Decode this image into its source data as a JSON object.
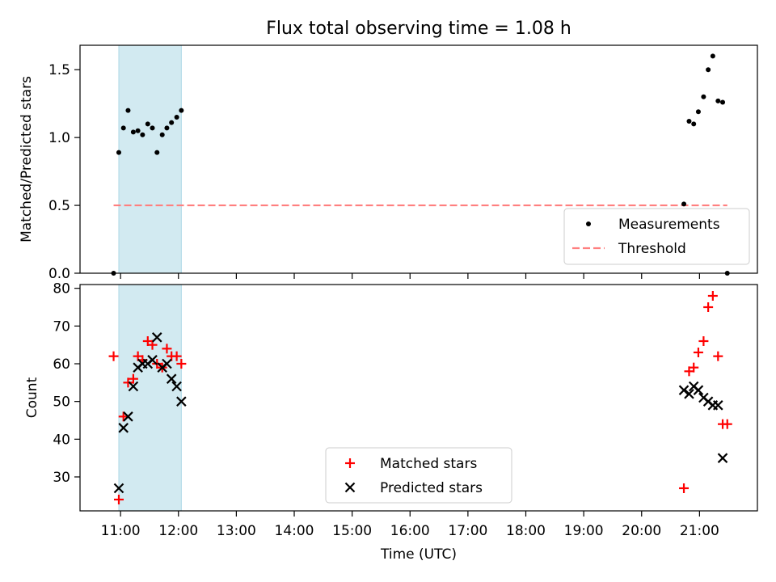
{
  "chart_data": [
    {
      "type": "scatter",
      "title": "Flux total observing time = 1.08 h",
      "xlabel": "",
      "ylabel": "Matched/Predicted stars",
      "x_unit": "hours (UTC time of day)",
      "xlim": [
        10.3,
        22.0
      ],
      "ylim": [
        0,
        1.68
      ],
      "yticks": [
        0.0,
        0.5,
        1.0,
        1.5
      ],
      "ytick_labels": [
        "0.0",
        "0.5",
        "1.0",
        "1.5"
      ],
      "shaded_span": [
        10.97,
        12.05
      ],
      "shade_color": "#add8e6",
      "legend_loc": "lower right",
      "series": [
        {
          "name": "Measurements",
          "style": "dot",
          "color": "#000000",
          "x": [
            10.88,
            10.97,
            11.05,
            11.13,
            11.22,
            11.3,
            11.38,
            11.47,
            11.55,
            11.63,
            11.72,
            11.8,
            11.88,
            11.97,
            12.05,
            20.73,
            20.82,
            20.9,
            20.98,
            21.07,
            21.15,
            21.23,
            21.32,
            21.4,
            21.48
          ],
          "y": [
            0.0,
            0.89,
            1.07,
            1.2,
            1.04,
            1.05,
            1.02,
            1.1,
            1.07,
            0.89,
            1.02,
            1.07,
            1.11,
            1.15,
            1.2,
            0.51,
            1.12,
            1.1,
            1.19,
            1.3,
            1.5,
            1.6,
            1.27,
            1.26,
            0.0
          ]
        },
        {
          "name": "Threshold",
          "style": "dashed",
          "color": "#ff7f7f",
          "x": [
            10.88,
            21.48
          ],
          "y": [
            0.5,
            0.5
          ]
        }
      ]
    },
    {
      "type": "scatter",
      "title": "",
      "xlabel": "Time (UTC)",
      "ylabel": "Count",
      "x_unit": "hours (UTC time of day)",
      "xlim": [
        10.3,
        22.0
      ],
      "ylim": [
        21,
        81
      ],
      "xticks": [
        11,
        12,
        13,
        14,
        15,
        16,
        17,
        18,
        19,
        20,
        21
      ],
      "xtick_labels": [
        "11:00",
        "12:00",
        "13:00",
        "14:00",
        "15:00",
        "16:00",
        "17:00",
        "18:00",
        "19:00",
        "20:00",
        "21:00"
      ],
      "yticks": [
        30,
        40,
        50,
        60,
        70,
        80
      ],
      "ytick_labels": [
        "30",
        "40",
        "50",
        "60",
        "70",
        "80"
      ],
      "shaded_span": [
        10.97,
        12.05
      ],
      "shade_color": "#add8e6",
      "legend_loc": "lower center",
      "series": [
        {
          "name": "Matched stars",
          "style": "plus",
          "color": "#ff0000",
          "x": [
            10.88,
            10.97,
            11.05,
            11.13,
            11.22,
            11.3,
            11.38,
            11.47,
            11.55,
            11.63,
            11.72,
            11.8,
            11.88,
            11.97,
            12.05,
            20.73,
            20.82,
            20.9,
            20.98,
            21.07,
            21.15,
            21.23,
            21.32,
            21.4,
            21.48
          ],
          "y": [
            62,
            24,
            46,
            55,
            56,
            62,
            61,
            66,
            65,
            60,
            59,
            64,
            62,
            62,
            60,
            27,
            58,
            59,
            63,
            66,
            75,
            78,
            62,
            44,
            44
          ]
        },
        {
          "name": "Predicted stars",
          "style": "x",
          "color": "#000000",
          "x": [
            10.97,
            11.05,
            11.13,
            11.22,
            11.3,
            11.38,
            11.47,
            11.55,
            11.63,
            11.72,
            11.8,
            11.88,
            11.97,
            12.05,
            20.73,
            20.82,
            20.9,
            20.98,
            21.07,
            21.15,
            21.23,
            21.32,
            21.4
          ],
          "y": [
            27,
            43,
            46,
            54,
            59,
            60,
            60,
            61,
            67,
            59,
            60,
            56,
            54,
            50,
            53,
            52,
            54,
            53,
            51,
            50,
            49,
            49,
            35
          ]
        }
      ]
    }
  ]
}
